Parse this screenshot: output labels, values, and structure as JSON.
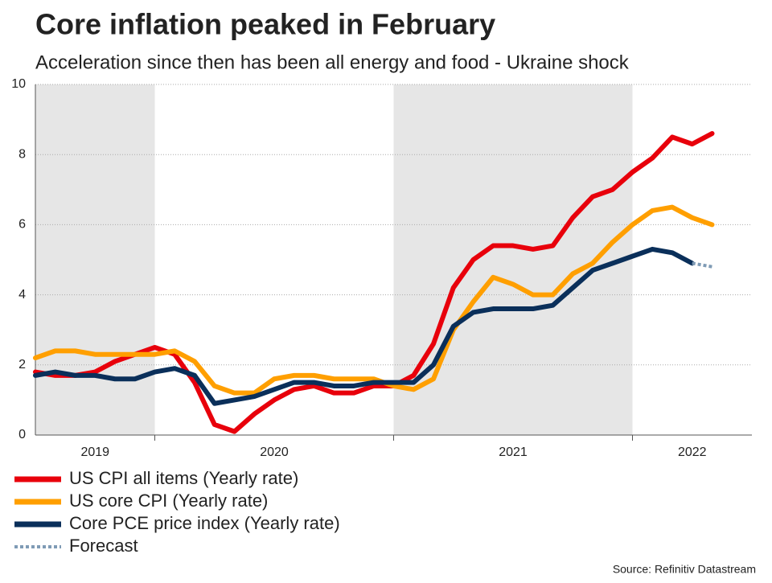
{
  "chart_data": {
    "type": "line",
    "title": "Core inflation peaked in February",
    "subtitle": "Acceleration since then has been all energy and food - Ukraine shock",
    "source": "Source: Refinitiv Datastream",
    "x": [
      "2019-07",
      "2019-08",
      "2019-09",
      "2019-10",
      "2019-11",
      "2019-12",
      "2020-01",
      "2020-02",
      "2020-03",
      "2020-04",
      "2020-05",
      "2020-06",
      "2020-07",
      "2020-08",
      "2020-09",
      "2020-10",
      "2020-11",
      "2020-12",
      "2021-01",
      "2021-02",
      "2021-03",
      "2021-04",
      "2021-05",
      "2021-06",
      "2021-07",
      "2021-08",
      "2021-09",
      "2021-10",
      "2021-11",
      "2021-12",
      "2022-01",
      "2022-02",
      "2022-03",
      "2022-04",
      "2022-05"
    ],
    "xlim": [
      "2019-07",
      "2022-07"
    ],
    "xticks": [
      "2020-01",
      "2021-01",
      "2022-01"
    ],
    "x_band_labels": [
      "2019",
      "2020",
      "2021",
      "2022"
    ],
    "ylim": [
      0,
      10
    ],
    "yticks": [
      0,
      2,
      4,
      6,
      8,
      10
    ],
    "grid": true,
    "series": [
      {
        "name": "US CPI all items (Yearly rate)",
        "color": "#e8000b",
        "dashed": false,
        "values": [
          1.8,
          1.7,
          1.7,
          1.8,
          2.1,
          2.3,
          2.5,
          2.3,
          1.5,
          0.3,
          0.1,
          0.6,
          1.0,
          1.3,
          1.4,
          1.2,
          1.2,
          1.4,
          1.4,
          1.7,
          2.6,
          4.2,
          5.0,
          5.4,
          5.4,
          5.3,
          5.4,
          6.2,
          6.8,
          7.0,
          7.5,
          7.9,
          8.5,
          8.3,
          8.6
        ]
      },
      {
        "name": "US core CPI (Yearly rate)",
        "color": "#ff9f00",
        "dashed": false,
        "values": [
          2.2,
          2.4,
          2.4,
          2.3,
          2.3,
          2.3,
          2.3,
          2.4,
          2.1,
          1.4,
          1.2,
          1.2,
          1.6,
          1.7,
          1.7,
          1.6,
          1.6,
          1.6,
          1.4,
          1.3,
          1.6,
          3.0,
          3.8,
          4.5,
          4.3,
          4.0,
          4.0,
          4.6,
          4.9,
          5.5,
          6.0,
          6.4,
          6.5,
          6.2,
          6.0
        ]
      },
      {
        "name": "Core PCE price index (Yearly rate)",
        "color": "#0a2f5a",
        "dashed": false,
        "values": [
          1.7,
          1.8,
          1.7,
          1.7,
          1.6,
          1.6,
          1.8,
          1.9,
          1.7,
          0.9,
          1.0,
          1.1,
          1.3,
          1.5,
          1.5,
          1.4,
          1.4,
          1.5,
          1.5,
          1.5,
          2.0,
          3.1,
          3.5,
          3.6,
          3.6,
          3.6,
          3.7,
          4.2,
          4.7,
          4.9,
          5.1,
          5.3,
          5.2,
          4.9,
          null
        ]
      },
      {
        "name": "Forecast",
        "color": "#7f9bb5",
        "dashed": true,
        "values": [
          null,
          null,
          null,
          null,
          null,
          null,
          null,
          null,
          null,
          null,
          null,
          null,
          null,
          null,
          null,
          null,
          null,
          null,
          null,
          null,
          null,
          null,
          null,
          null,
          null,
          null,
          null,
          null,
          null,
          null,
          null,
          null,
          null,
          4.9,
          4.8
        ]
      }
    ]
  }
}
